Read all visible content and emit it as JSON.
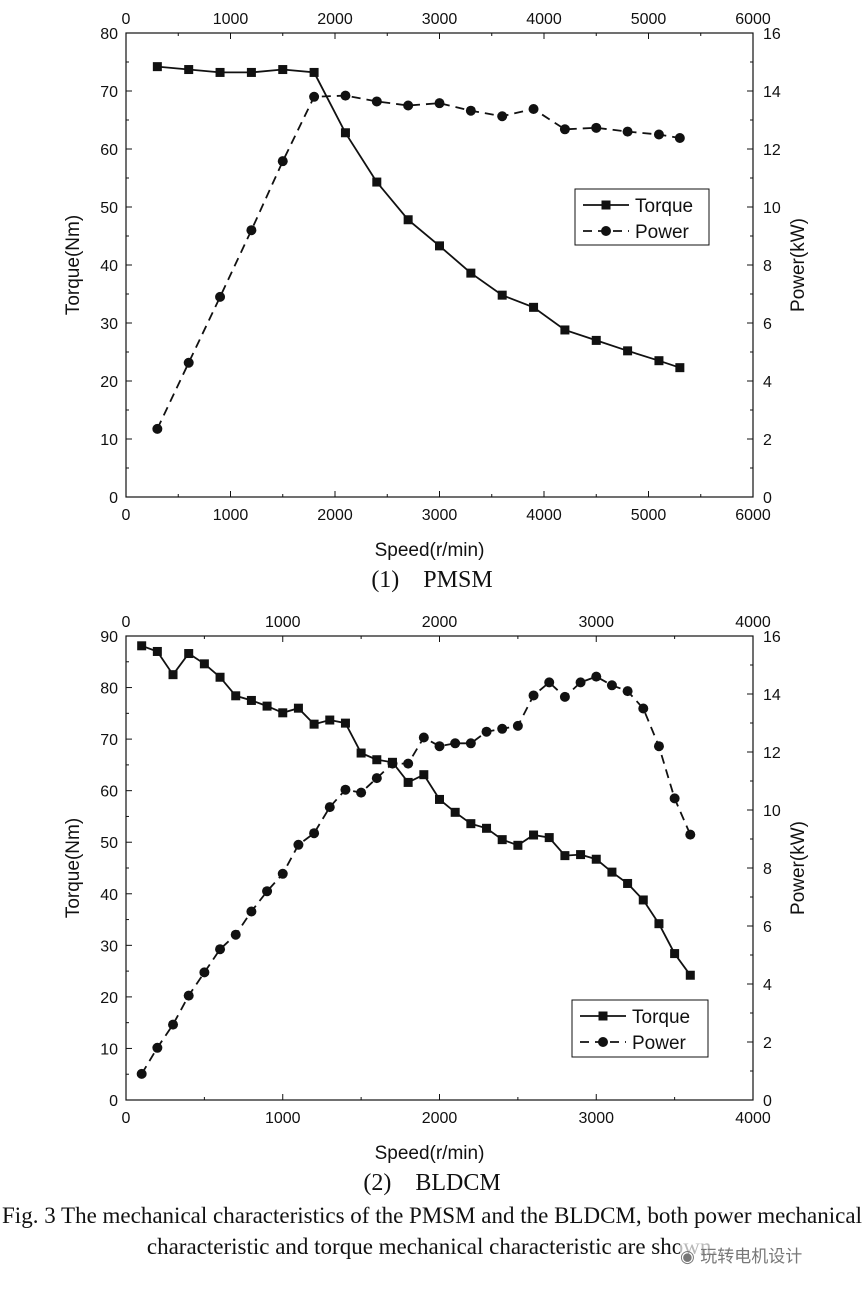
{
  "chart_data": [
    {
      "type": "line",
      "name": "PMSM",
      "x_top_ticks": [
        "0",
        "1000",
        "2000",
        "3000",
        "4000",
        "5000",
        "6000"
      ],
      "x_bottom_ticks": [
        "0",
        "1000",
        "2000",
        "3000",
        "4000",
        "5000",
        "6000"
      ],
      "y_left_ticks": [
        "0",
        "10",
        "20",
        "30",
        "40",
        "50",
        "60",
        "70",
        "80"
      ],
      "y_right_ticks": [
        "0",
        "2",
        "4",
        "6",
        "8",
        "10",
        "12",
        "14",
        "16"
      ],
      "xlabel": "Speed(r/min)",
      "ylabel_left": "Torque(Nm)",
      "ylabel_right": "Power(kW)",
      "xlim": [
        0,
        6000
      ],
      "ylim_left": [
        0,
        80
      ],
      "ylim_right": [
        0,
        16
      ],
      "legend": [
        "Torque",
        "Power"
      ],
      "series": [
        {
          "name": "Torque",
          "axis": "left",
          "x": [
            300,
            600,
            900,
            1200,
            1500,
            1800,
            2100,
            2400,
            2700,
            3000,
            3300,
            3600,
            3900,
            4200,
            4500,
            4800,
            5100,
            5300
          ],
          "values": [
            74.2,
            73.7,
            73.2,
            73.2,
            73.7,
            73.2,
            62.8,
            54.3,
            47.8,
            43.3,
            38.6,
            34.8,
            32.7,
            28.8,
            27.0,
            25.2,
            23.5,
            22.3
          ]
        },
        {
          "name": "Power",
          "axis": "right",
          "x": [
            300,
            600,
            900,
            1200,
            1500,
            1800,
            2100,
            2400,
            2700,
            3000,
            3300,
            3600,
            3900,
            4200,
            4500,
            4800,
            5100,
            5300
          ],
          "values": [
            2.35,
            4.63,
            6.9,
            9.2,
            11.58,
            13.8,
            13.84,
            13.64,
            13.5,
            13.58,
            13.32,
            13.13,
            13.38,
            12.68,
            12.73,
            12.6,
            12.5,
            12.38
          ]
        }
      ]
    },
    {
      "type": "line",
      "name": "BLDCM",
      "x_top_ticks": [
        "0",
        "1000",
        "2000",
        "3000",
        "4000"
      ],
      "x_bottom_ticks": [
        "0",
        "1000",
        "2000",
        "3000",
        "4000"
      ],
      "y_left_ticks": [
        "0",
        "10",
        "20",
        "30",
        "40",
        "50",
        "60",
        "70",
        "80",
        "90"
      ],
      "y_right_ticks": [
        "0",
        "2",
        "4",
        "6",
        "8",
        "10",
        "12",
        "14",
        "16"
      ],
      "xlabel": "Speed(r/min)",
      "ylabel_left": "Torque(Nm)",
      "ylabel_right": "Power(kW)",
      "xlim": [
        0,
        4000
      ],
      "ylim_left": [
        0,
        90
      ],
      "ylim_right": [
        0,
        16
      ],
      "legend": [
        "Torque",
        "Power"
      ],
      "series": [
        {
          "name": "Torque",
          "axis": "left",
          "x": [
            100,
            200,
            300,
            400,
            500,
            600,
            700,
            800,
            900,
            1000,
            1100,
            1200,
            1300,
            1400,
            1500,
            1600,
            1700,
            1800,
            1900,
            2000,
            2100,
            2200,
            2300,
            2400,
            2500,
            2600,
            2700,
            2800,
            2900,
            3000,
            3100,
            3200,
            3300,
            3400,
            3500,
            3600
          ],
          "values": [
            88.1,
            87.0,
            82.5,
            86.6,
            84.6,
            82.0,
            78.4,
            77.5,
            76.4,
            75.1,
            76.0,
            72.9,
            73.7,
            73.1,
            67.3,
            66.0,
            65.5,
            61.6,
            63.1,
            58.3,
            55.8,
            53.6,
            52.7,
            50.5,
            49.4,
            51.4,
            50.9,
            47.4,
            47.6,
            46.7,
            44.2,
            42.0,
            38.8,
            34.2,
            28.4,
            24.2
          ]
        },
        {
          "name": "Power",
          "axis": "right",
          "x": [
            100,
            200,
            300,
            400,
            500,
            600,
            700,
            800,
            900,
            1000,
            1100,
            1200,
            1300,
            1400,
            1500,
            1600,
            1700,
            1800,
            1900,
            2000,
            2100,
            2200,
            2300,
            2400,
            2500,
            2600,
            2700,
            2800,
            2900,
            3000,
            3100,
            3200,
            3300,
            3400,
            3500,
            3600
          ],
          "values": [
            0.9,
            1.8,
            2.6,
            3.6,
            4.4,
            5.2,
            5.7,
            6.5,
            7.2,
            7.8,
            8.8,
            9.2,
            10.1,
            10.7,
            10.6,
            11.1,
            11.6,
            11.6,
            12.5,
            12.2,
            12.3,
            12.3,
            12.7,
            12.8,
            12.9,
            13.95,
            14.4,
            13.9,
            14.4,
            14.6,
            14.3,
            14.1,
            13.5,
            12.2,
            10.4,
            9.15
          ]
        }
      ]
    }
  ],
  "captions": {
    "pmsm": "(1) PMSM",
    "bldcm": "(2) BLDCM",
    "figure": "Fig. 3 The mechanical characteristics of the PMSM and the BLDCM, both power mechanical characteristic and torque mechanical characteristic are shown."
  },
  "watermark": "玩转电机设计"
}
